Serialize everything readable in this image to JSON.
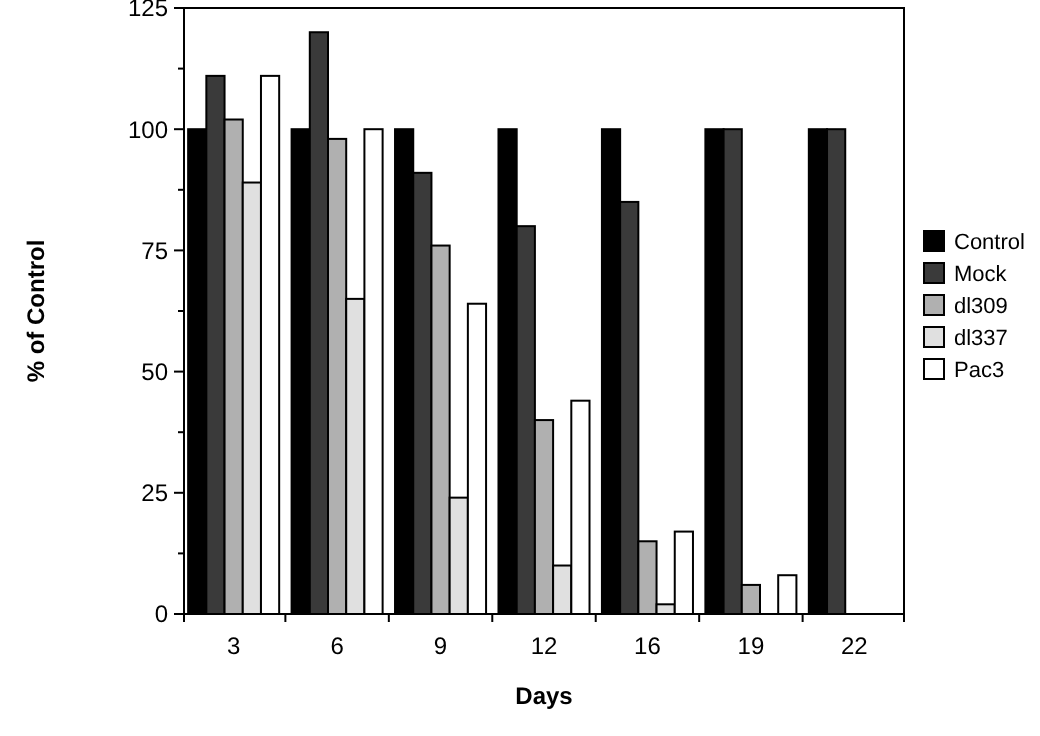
{
  "chart_data": {
    "type": "bar",
    "xlabel": "Days",
    "ylabel": "% of Control",
    "categories": [
      "3",
      "6",
      "9",
      "12",
      "16",
      "19",
      "22"
    ],
    "series": [
      {
        "name": "Control",
        "color": "#000000",
        "values": [
          100,
          100,
          100,
          100,
          100,
          100,
          100
        ]
      },
      {
        "name": "Mock",
        "color": "#3a3a3a",
        "values": [
          111,
          120,
          91,
          80,
          85,
          100,
          100
        ]
      },
      {
        "name": "dl309",
        "color": "#b0b0b0",
        "values": [
          102,
          98,
          76,
          40,
          15,
          6,
          null
        ]
      },
      {
        "name": "dl337",
        "color": "#e0e0e0",
        "values": [
          89,
          65,
          24,
          10,
          2,
          null,
          null
        ]
      },
      {
        "name": "Pac3",
        "color": "#ffffff",
        "values": [
          111,
          100,
          64,
          44,
          17,
          8,
          null
        ]
      }
    ],
    "ylim": [
      0,
      125
    ],
    "yticks": [
      0,
      25,
      50,
      75,
      100,
      125
    ],
    "grid": false,
    "legend": "right"
  }
}
